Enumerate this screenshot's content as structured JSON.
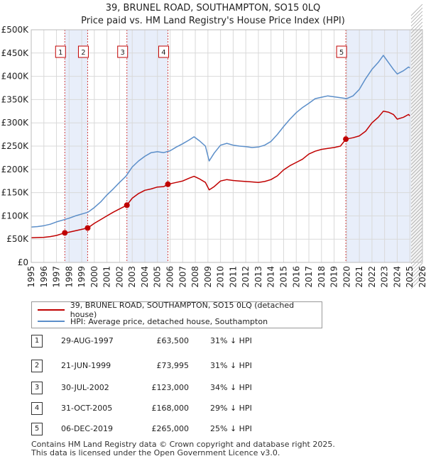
{
  "chart_data": {
    "type": "line",
    "title": "39, BRUNEL ROAD, SOUTHAMPTON, SO15 0LQ",
    "subtitle": "Price paid vs. HM Land Registry's House Price Index (HPI)",
    "xlim": [
      1995,
      2026
    ],
    "ylim": [
      0,
      500000
    ],
    "x_ticks": [
      "1995",
      "1996",
      "1997",
      "1998",
      "1999",
      "2000",
      "2001",
      "2002",
      "2003",
      "2004",
      "2005",
      "2006",
      "2007",
      "2008",
      "2009",
      "2010",
      "2011",
      "2012",
      "2013",
      "2014",
      "2015",
      "2016",
      "2017",
      "2018",
      "2019",
      "2020",
      "2021",
      "2022",
      "2023",
      "2024",
      "2025",
      "2026"
    ],
    "y_ticks": [
      {
        "value": 0,
        "label": "£0"
      },
      {
        "value": 50000,
        "label": "£50K"
      },
      {
        "value": 100000,
        "label": "£100K"
      },
      {
        "value": 150000,
        "label": "£150K"
      },
      {
        "value": 200000,
        "label": "£200K"
      },
      {
        "value": 250000,
        "label": "£250K"
      },
      {
        "value": 300000,
        "label": "£300K"
      },
      {
        "value": 350000,
        "label": "£350K"
      },
      {
        "value": 400000,
        "label": "£400K"
      },
      {
        "value": 450000,
        "label": "£450K"
      },
      {
        "value": 500000,
        "label": "£500K"
      }
    ],
    "forecast_start": 2025.1,
    "series": [
      {
        "name": "39, BRUNEL ROAD, SOUTHAMPTON, SO15 0LQ (detached house)",
        "color": "#c00000",
        "x": [
          1995.0,
          1995.5,
          1996.0,
          1996.5,
          1997.0,
          1997.66,
          1998.0,
          1998.5,
          1999.0,
          1999.47,
          2000.0,
          2000.5,
          2001.0,
          2001.5,
          2002.0,
          2002.58,
          2003.0,
          2003.5,
          2004.0,
          2004.5,
          2005.0,
          2005.5,
          2005.83,
          2006.5,
          2007.0,
          2007.5,
          2007.9,
          2008.3,
          2008.8,
          2009.1,
          2009.5,
          2010.0,
          2010.5,
          2011.0,
          2011.5,
          2012.0,
          2012.5,
          2013.0,
          2013.5,
          2014.0,
          2014.5,
          2015.0,
          2015.5,
          2016.0,
          2016.5,
          2017.0,
          2017.5,
          2018.0,
          2018.5,
          2019.0,
          2019.5,
          2019.93,
          2020.5,
          2021.0,
          2021.5,
          2022.0,
          2022.5,
          2022.9,
          2023.3,
          2023.7,
          2024.0,
          2024.5,
          2024.9,
          2025.0
        ],
        "y": [
          53000,
          53500,
          54000,
          55500,
          58000,
          63500,
          65000,
          68000,
          71000,
          73995,
          84000,
          92000,
          100000,
          108000,
          115000,
          123000,
          138000,
          148000,
          155000,
          158000,
          162000,
          163000,
          168000,
          172000,
          175000,
          181000,
          185000,
          180000,
          172000,
          156000,
          163000,
          175000,
          178000,
          176000,
          175000,
          174000,
          173000,
          172000,
          174000,
          178000,
          186000,
          199000,
          208000,
          215000,
          222000,
          233000,
          239000,
          243000,
          245000,
          247000,
          250000,
          265000,
          268000,
          272000,
          282000,
          300000,
          312000,
          325000,
          323000,
          318000,
          308000,
          312000,
          318000,
          315000
        ]
      },
      {
        "name": "HPI: Average price, detached house, Southampton",
        "color": "#5b8ec9",
        "x": [
          1995.0,
          1995.5,
          1996.0,
          1996.5,
          1997.0,
          1997.5,
          1998.0,
          1998.5,
          1999.0,
          1999.5,
          2000.0,
          2000.5,
          2001.0,
          2001.5,
          2002.0,
          2002.5,
          2003.0,
          2003.5,
          2004.0,
          2004.5,
          2005.0,
          2005.5,
          2006.0,
          2006.5,
          2007.0,
          2007.5,
          2007.9,
          2008.3,
          2008.8,
          2009.1,
          2009.5,
          2010.0,
          2010.5,
          2011.0,
          2011.5,
          2012.0,
          2012.5,
          2013.0,
          2013.5,
          2014.0,
          2014.5,
          2015.0,
          2015.5,
          2016.0,
          2016.5,
          2017.0,
          2017.5,
          2018.0,
          2018.5,
          2019.0,
          2019.5,
          2020.0,
          2020.5,
          2021.0,
          2021.5,
          2022.0,
          2022.5,
          2022.9,
          2023.3,
          2023.7,
          2024.0,
          2024.5,
          2024.9,
          2025.0
        ],
        "y": [
          76000,
          77000,
          79000,
          82000,
          87000,
          91000,
          95000,
          100000,
          104000,
          108000,
          118000,
          130000,
          145000,
          158000,
          172000,
          185000,
          205000,
          218000,
          228000,
          236000,
          238000,
          236000,
          240000,
          248000,
          255000,
          263000,
          270000,
          262000,
          250000,
          218000,
          235000,
          252000,
          256000,
          252000,
          250000,
          249000,
          247000,
          248000,
          252000,
          260000,
          275000,
          292000,
          308000,
          322000,
          333000,
          342000,
          352000,
          355000,
          358000,
          356000,
          354000,
          352000,
          358000,
          372000,
          395000,
          415000,
          430000,
          445000,
          430000,
          415000,
          405000,
          412000,
          420000,
          418000
        ]
      }
    ],
    "sales": [
      {
        "id": "1",
        "x": 1997.66,
        "price": 63500
      },
      {
        "id": "2",
        "x": 1999.47,
        "price": 73995
      },
      {
        "id": "3",
        "x": 2002.58,
        "price": 123000
      },
      {
        "id": "4",
        "x": 2005.83,
        "price": 168000
      },
      {
        "id": "5",
        "x": 2019.93,
        "price": 265000
      }
    ]
  },
  "legend": {
    "series1": "39, BRUNEL ROAD, SOUTHAMPTON, SO15 0LQ (detached house)",
    "series2": "HPI: Average price, detached house, Southampton"
  },
  "table": [
    {
      "num": "1",
      "date": "29-AUG-1997",
      "price": "£63,500",
      "hpi": "31% ↓ HPI"
    },
    {
      "num": "2",
      "date": "21-JUN-1999",
      "price": "£73,995",
      "hpi": "31% ↓ HPI"
    },
    {
      "num": "3",
      "date": "30-JUL-2002",
      "price": "£123,000",
      "hpi": "34% ↓ HPI"
    },
    {
      "num": "4",
      "date": "31-OCT-2005",
      "price": "£168,000",
      "hpi": "29% ↓ HPI"
    },
    {
      "num": "5",
      "date": "06-DEC-2019",
      "price": "£265,000",
      "hpi": "25% ↓ HPI"
    }
  ],
  "footer": {
    "line1": "Contains HM Land Registry data © Crown copyright and database right 2025.",
    "line2": "This data is licensed under the Open Government Licence v3.0."
  }
}
